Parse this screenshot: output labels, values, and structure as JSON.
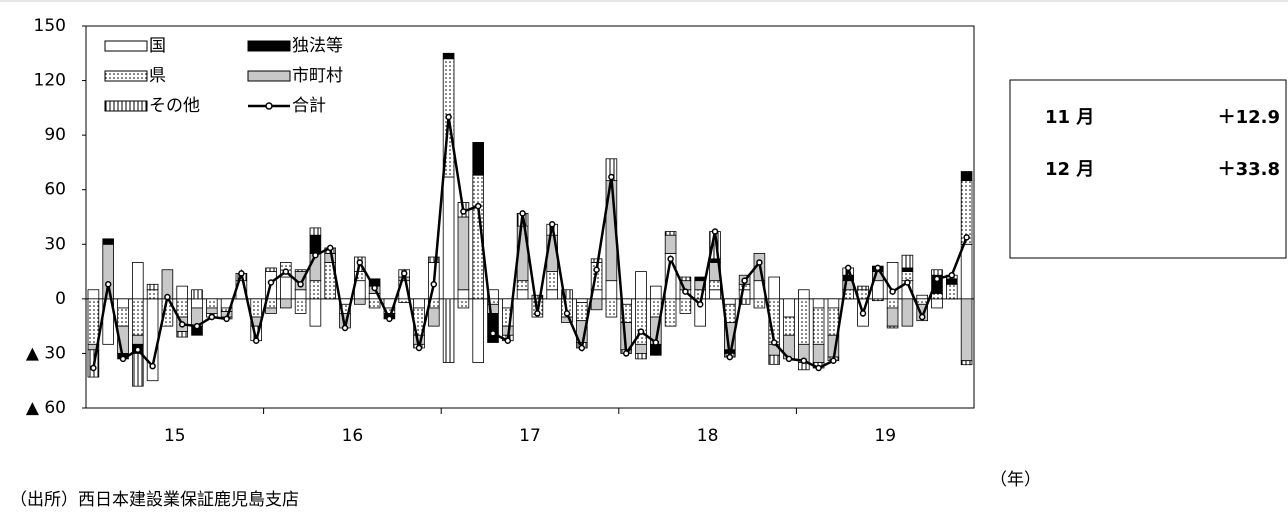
{
  "chart_data": {
    "type": "stacked-bar-line",
    "categories": [
      null,
      null,
      null,
      null,
      null,
      "15",
      null,
      null,
      null,
      null,
      null,
      null,
      null,
      null,
      null,
      null,
      null,
      "16",
      null,
      null,
      null,
      null,
      null,
      null,
      null,
      null,
      null,
      null,
      null,
      "17",
      null,
      null,
      null,
      null,
      null,
      null,
      null,
      null,
      null,
      null,
      null,
      "18",
      null,
      null,
      null,
      null,
      null,
      null,
      null,
      null,
      null,
      null,
      null,
      "19",
      null,
      null,
      null,
      null,
      null,
      null
    ],
    "x_label": "（年）",
    "ylim": [
      -60,
      150
    ],
    "yticks": [
      {
        "value": -60,
        "label": "▲ 60"
      },
      {
        "value": -30,
        "label": "▲ 30"
      },
      0,
      30,
      60,
      90,
      120,
      150
    ],
    "series": [
      {
        "name": "国",
        "kind": "bar",
        "color": "#ffffff",
        "pattern": "none",
        "values": [
          5,
          -25,
          -5,
          20,
          -45,
          0,
          7,
          -5,
          0,
          -5,
          10,
          0,
          15,
          12,
          5,
          -15,
          0,
          -3,
          10,
          3,
          -5,
          10,
          -5,
          20,
          67,
          5,
          -35,
          5,
          -5,
          5,
          0,
          5,
          0,
          -2,
          5,
          10,
          -3,
          15,
          7,
          25,
          5,
          -15,
          5,
          -3,
          5,
          10,
          12,
          -10,
          5,
          -5,
          -5,
          0,
          -15,
          10,
          20,
          10,
          2,
          -5,
          0,
          30
        ]
      },
      {
        "name": "県",
        "kind": "bar",
        "color": "#ffffff",
        "pattern": "dots",
        "values": [
          -25,
          0,
          -10,
          -20,
          5,
          -15,
          -10,
          0,
          -5,
          -2,
          0,
          -10,
          -5,
          8,
          -8,
          10,
          20,
          -5,
          5,
          -5,
          -3,
          -2,
          -15,
          -5,
          65,
          -5,
          68,
          -3,
          -10,
          5,
          -10,
          10,
          -10,
          -10,
          15,
          -10,
          -10,
          -25,
          -10,
          -15,
          -8,
          5,
          5,
          -10,
          3,
          -5,
          -25,
          -10,
          -25,
          -20,
          -15,
          5,
          5,
          0,
          -5,
          5,
          -3,
          3,
          8,
          35
        ]
      },
      {
        "name": "市町村",
        "kind": "bar",
        "color": "#c8c8c8",
        "pattern": "none",
        "values": [
          -3,
          30,
          -15,
          -5,
          0,
          16,
          -8,
          -10,
          -3,
          -3,
          0,
          -5,
          -3,
          -5,
          10,
          15,
          5,
          -8,
          -3,
          4,
          0,
          2,
          -5,
          -10,
          0,
          40,
          0,
          -5,
          -5,
          30,
          0,
          20,
          -3,
          -12,
          -6,
          55,
          -15,
          -5,
          -15,
          10,
          5,
          5,
          10,
          -15,
          5,
          15,
          -6,
          -13,
          -10,
          -10,
          -12,
          5,
          0,
          5,
          -10,
          -15,
          -9,
          0,
          0,
          -34
        ]
      },
      {
        "name": "独法等",
        "kind": "bar",
        "color": "#000000",
        "pattern": "none",
        "values": [
          0,
          3,
          -3,
          -5,
          0,
          0,
          0,
          -5,
          0,
          0,
          0,
          0,
          0,
          0,
          0,
          10,
          0,
          0,
          0,
          4,
          -3,
          0,
          0,
          0,
          3,
          0,
          18,
          -16,
          0,
          0,
          0,
          0,
          0,
          0,
          0,
          0,
          0,
          0,
          -6,
          0,
          0,
          2,
          2,
          -2,
          0,
          0,
          0,
          0,
          0,
          0,
          0,
          3,
          0,
          3,
          0,
          2,
          0,
          10,
          3,
          5
        ]
      },
      {
        "name": "その他",
        "kind": "bar",
        "color": "#ffffff",
        "pattern": "stripes",
        "values": [
          -15,
          0,
          0,
          -18,
          3,
          0,
          -3,
          5,
          -2,
          -1,
          4,
          -8,
          2,
          0,
          1,
          4,
          3,
          0,
          8,
          0,
          0,
          4,
          -2,
          3,
          -35,
          8,
          0,
          0,
          -3,
          7,
          2,
          6,
          5,
          -3,
          2,
          12,
          -2,
          -3,
          0,
          2,
          2,
          0,
          15,
          -2,
          -3,
          0,
          -5,
          0,
          -4,
          -3,
          -2,
          4,
          2,
          -1,
          -1,
          7,
          0,
          3,
          2,
          -2.2
        ]
      },
      {
        "name": "合計",
        "kind": "line",
        "color": "#000000",
        "values": [
          -38,
          8,
          -33,
          -28,
          -37,
          1,
          -14,
          -15,
          -10,
          -11,
          14,
          -23,
          9,
          15,
          8,
          24,
          28,
          -16,
          20,
          6,
          -11,
          14,
          -27,
          8,
          100,
          48,
          51,
          -19,
          -23,
          47,
          -8,
          41,
          -8,
          -27,
          16,
          67,
          -30,
          -18,
          -24,
          22,
          4,
          -3,
          37,
          -32,
          10,
          20,
          -24,
          -33,
          -34,
          -38,
          -34,
          17,
          -8,
          17,
          4,
          9,
          -10,
          11,
          13,
          33.8
        ]
      }
    ],
    "notes": [
      {
        "label": "11 月",
        "value": "＋12.9"
      },
      {
        "label": "12 月",
        "value": "＋33.8"
      }
    ],
    "source": "（出所）西日本建設業保証鹿児島支店"
  }
}
